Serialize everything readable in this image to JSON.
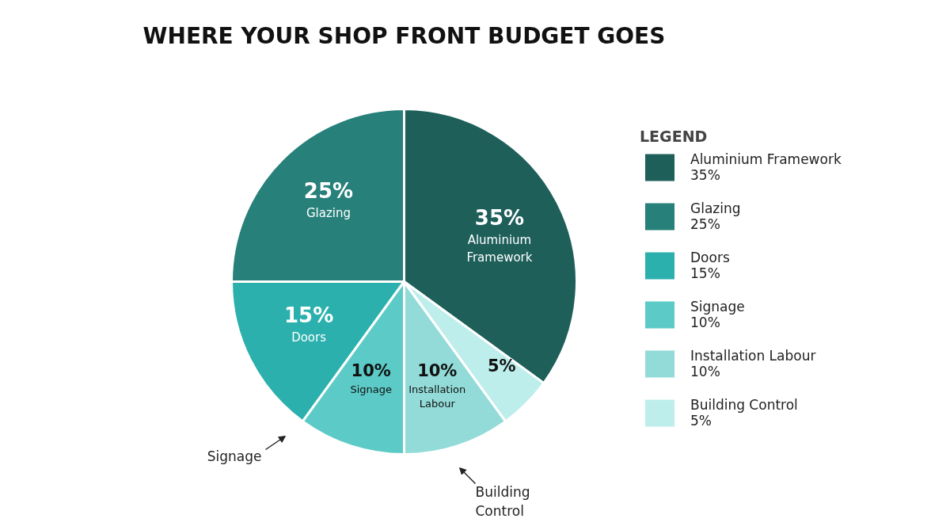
{
  "chart_data": {
    "type": "pie",
    "title": "WHERE YOUR SHOP FRONT BUDGET GOES",
    "legend_title": "LEGEND",
    "legend": "right",
    "categories": [
      "Aluminium Framework",
      "Glazing",
      "Doors",
      "Signage",
      "Installation Labour",
      "Building Control"
    ],
    "values": [
      35,
      25,
      15,
      10,
      10,
      5
    ],
    "value_labels": [
      "35%",
      "25%",
      "15%",
      "10%",
      "10%",
      "5%"
    ],
    "colors": [
      "#1e5f5a",
      "#27807a",
      "#2bb0ad",
      "#5ccac6",
      "#92dbd8",
      "#bdeeeb"
    ],
    "annotations": [
      "Signage",
      "Building Control"
    ]
  }
}
